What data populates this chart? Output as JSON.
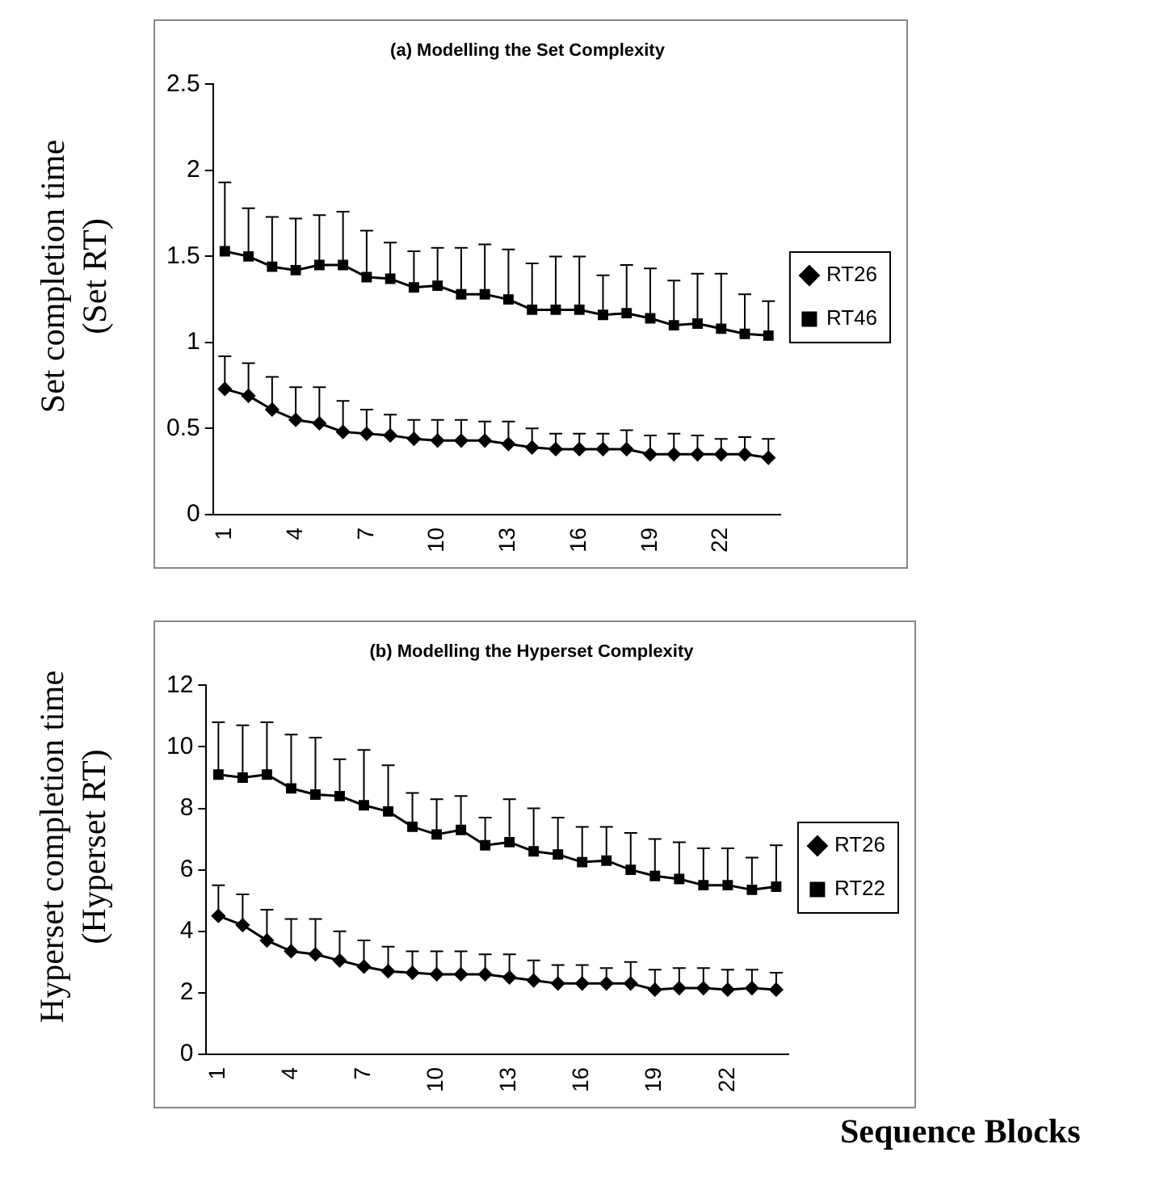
{
  "chart_data": [
    {
      "type": "line",
      "title": "(a) Modelling the Set Complexity",
      "ylabel": "Set completion time\n(Set RT)",
      "categories": [
        "1",
        null,
        null,
        "4",
        null,
        null,
        "7",
        null,
        null,
        "10",
        null,
        null,
        "13",
        null,
        null,
        "16",
        null,
        null,
        "19",
        null,
        null,
        "22",
        null,
        null
      ],
      "ylim": [
        0,
        2.5
      ],
      "yticks": [
        0,
        0.5,
        1,
        1.5,
        2,
        2.5
      ],
      "legend": "right",
      "grid": false,
      "line_style": "solid",
      "series": [
        {
          "name": "RT26",
          "color": "#000000",
          "marker": "diamond",
          "values": [
            0.73,
            0.69,
            0.61,
            0.55,
            0.53,
            0.48,
            0.47,
            0.46,
            0.44,
            0.43,
            0.43,
            0.43,
            0.41,
            0.39,
            0.38,
            0.38,
            0.38,
            0.38,
            0.35,
            0.35,
            0.35,
            0.35,
            0.35,
            0.33
          ],
          "errors": [
            [
              0.73,
              0.92
            ],
            [
              0.69,
              0.88
            ],
            [
              0.61,
              0.8
            ],
            [
              0.55,
              0.74
            ],
            [
              0.53,
              0.74
            ],
            [
              0.48,
              0.66
            ],
            [
              0.47,
              0.61
            ],
            [
              0.46,
              0.58
            ],
            [
              0.44,
              0.55
            ],
            [
              0.43,
              0.55
            ],
            [
              0.43,
              0.55
            ],
            [
              0.43,
              0.54
            ],
            [
              0.41,
              0.54
            ],
            [
              0.39,
              0.5
            ],
            [
              0.38,
              0.47
            ],
            [
              0.38,
              0.47
            ],
            [
              0.38,
              0.47
            ],
            [
              0.38,
              0.49
            ],
            [
              0.35,
              0.46
            ],
            [
              0.35,
              0.47
            ],
            [
              0.35,
              0.46
            ],
            [
              0.35,
              0.44
            ],
            [
              0.35,
              0.45
            ],
            [
              0.33,
              0.44
            ]
          ]
        },
        {
          "name": "RT46",
          "color": "#000000",
          "marker": "square",
          "values": [
            1.53,
            1.5,
            1.44,
            1.42,
            1.45,
            1.45,
            1.38,
            1.37,
            1.32,
            1.33,
            1.28,
            1.28,
            1.25,
            1.19,
            1.19,
            1.19,
            1.16,
            1.17,
            1.14,
            1.1,
            1.11,
            1.08,
            1.05,
            1.04
          ],
          "errors": [
            [
              1.53,
              1.93
            ],
            [
              1.5,
              1.78
            ],
            [
              1.44,
              1.73
            ],
            [
              1.42,
              1.72
            ],
            [
              1.45,
              1.74
            ],
            [
              1.45,
              1.76
            ],
            [
              1.38,
              1.65
            ],
            [
              1.37,
              1.58
            ],
            [
              1.32,
              1.53
            ],
            [
              1.33,
              1.55
            ],
            [
              1.28,
              1.55
            ],
            [
              1.28,
              1.57
            ],
            [
              1.25,
              1.54
            ],
            [
              1.19,
              1.46
            ],
            [
              1.19,
              1.5
            ],
            [
              1.19,
              1.5
            ],
            [
              1.16,
              1.39
            ],
            [
              1.17,
              1.45
            ],
            [
              1.14,
              1.43
            ],
            [
              1.1,
              1.36
            ],
            [
              1.11,
              1.4
            ],
            [
              1.08,
              1.4
            ],
            [
              1.05,
              1.28
            ],
            [
              1.04,
              1.24
            ]
          ]
        }
      ]
    },
    {
      "type": "line",
      "title": "(b) Modelling the Hyperset Complexity",
      "ylabel": "Hyperset completion time\n(Hyperset RT)",
      "xlabel": "Sequence Blocks",
      "categories": [
        "1",
        null,
        null,
        "4",
        null,
        null,
        "7",
        null,
        null,
        "10",
        null,
        null,
        "13",
        null,
        null,
        "16",
        null,
        null,
        "19",
        null,
        null,
        "22",
        null,
        null
      ],
      "ylim": [
        0,
        12
      ],
      "yticks": [
        0,
        2,
        4,
        6,
        8,
        10,
        12
      ],
      "legend": "right",
      "grid": false,
      "line_style": "solid",
      "series": [
        {
          "name": "RT26",
          "color": "#000000",
          "marker": "diamond",
          "values": [
            4.5,
            4.2,
            3.7,
            3.35,
            3.25,
            3.05,
            2.85,
            2.7,
            2.65,
            2.6,
            2.6,
            2.6,
            2.5,
            2.4,
            2.3,
            2.3,
            2.3,
            2.3,
            2.1,
            2.15,
            2.15,
            2.1,
            2.15,
            2.1
          ],
          "errors": [
            [
              4.5,
              5.5
            ],
            [
              4.2,
              5.2
            ],
            [
              3.7,
              4.7
            ],
            [
              3.35,
              4.4
            ],
            [
              3.25,
              4.4
            ],
            [
              3.05,
              4
            ],
            [
              2.85,
              3.7
            ],
            [
              2.7,
              3.5
            ],
            [
              2.65,
              3.35
            ],
            [
              2.6,
              3.35
            ],
            [
              2.6,
              3.35
            ],
            [
              2.6,
              3.25
            ],
            [
              2.5,
              3.25
            ],
            [
              2.4,
              3.05
            ],
            [
              2.3,
              2.9
            ],
            [
              2.3,
              2.9
            ],
            [
              2.3,
              2.8
            ],
            [
              2.3,
              3
            ],
            [
              2.1,
              2.75
            ],
            [
              2.15,
              2.8
            ],
            [
              2.15,
              2.8
            ],
            [
              2.1,
              2.75
            ],
            [
              2.15,
              2.75
            ],
            [
              2.1,
              2.65
            ]
          ]
        },
        {
          "name": "RT22",
          "color": "#000000",
          "marker": "square",
          "values": [
            9.1,
            9,
            9.1,
            8.65,
            8.45,
            8.4,
            8.1,
            7.9,
            7.4,
            7.15,
            7.3,
            6.8,
            6.9,
            6.6,
            6.5,
            6.25,
            6.3,
            6,
            5.8,
            5.7,
            5.5,
            5.5,
            5.35,
            5.45
          ],
          "errors": [
            [
              9.1,
              10.8
            ],
            [
              9,
              10.7
            ],
            [
              9.1,
              10.8
            ],
            [
              8.65,
              10.4
            ],
            [
              8.45,
              10.3
            ],
            [
              8.4,
              9.6
            ],
            [
              8.1,
              9.9
            ],
            [
              7.9,
              9.4
            ],
            [
              7.4,
              8.5
            ],
            [
              7.15,
              8.3
            ],
            [
              7.3,
              8.4
            ],
            [
              6.8,
              7.7
            ],
            [
              6.9,
              8.3
            ],
            [
              6.6,
              8
            ],
            [
              6.5,
              7.7
            ],
            [
              6.25,
              7.4
            ],
            [
              6.3,
              7.4
            ],
            [
              6,
              7.2
            ],
            [
              5.8,
              7
            ],
            [
              5.7,
              6.9
            ],
            [
              5.5,
              6.7
            ],
            [
              5.5,
              6.7
            ],
            [
              5.35,
              6.4
            ],
            [
              5.45,
              6.8
            ]
          ]
        }
      ]
    }
  ]
}
